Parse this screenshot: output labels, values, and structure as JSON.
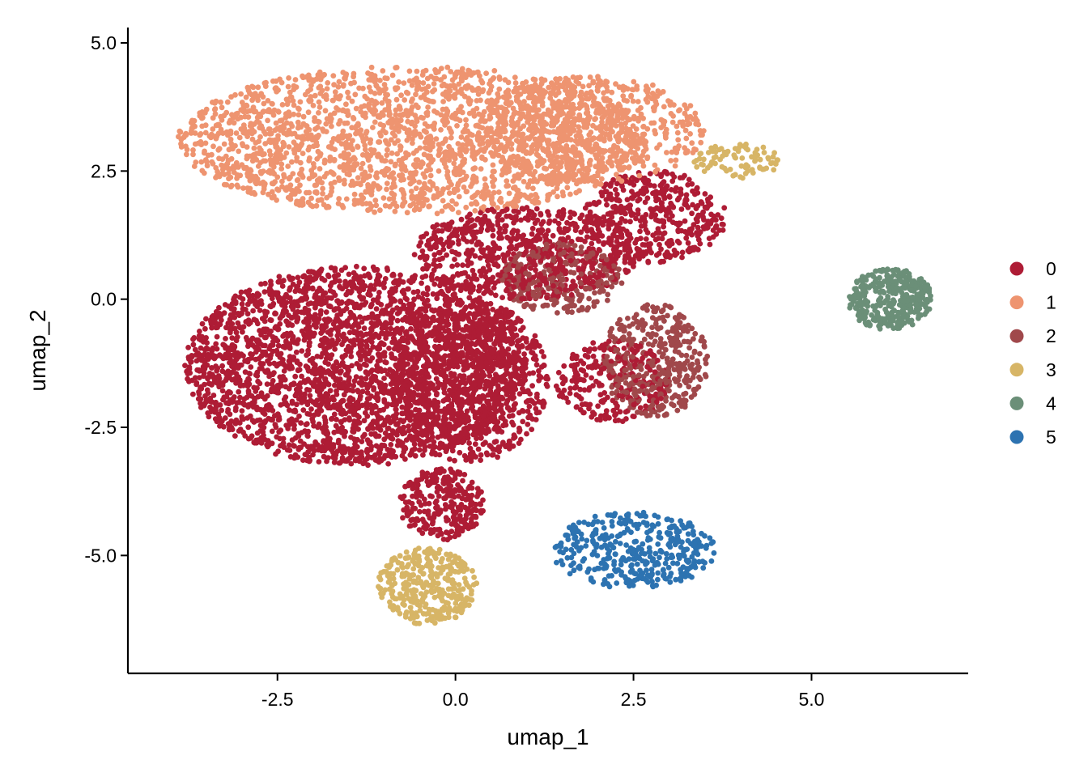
{
  "chart_data": {
    "type": "scatter",
    "title": "",
    "xlabel": "umap_1",
    "ylabel": "umap_2",
    "xlim": [
      -4.6,
      7.2
    ],
    "ylim": [
      -7.3,
      5.3
    ],
    "x_ticks": [
      -2.5,
      0.0,
      2.5,
      5.0
    ],
    "y_ticks": [
      -5.0,
      -2.5,
      0.0,
      2.5,
      5.0
    ],
    "x_tick_labels": [
      "-2.5",
      "0.0",
      "2.5",
      "5.0"
    ],
    "y_tick_labels": [
      "-5.0",
      "-2.5",
      "0.0",
      "2.5",
      "5.0"
    ],
    "grid": false,
    "legend_position": "right",
    "legend_title": "",
    "clusters": [
      {
        "name": "0",
        "color": "#AE1C35",
        "n_points": 5200
      },
      {
        "name": "1",
        "color": "#EE9470",
        "n_points": 2700
      },
      {
        "name": "2",
        "color": "#A0484B",
        "n_points": 650
      },
      {
        "name": "3",
        "color": "#D7B566",
        "n_points": 420
      },
      {
        "name": "4",
        "color": "#6B8F78",
        "n_points": 330
      },
      {
        "name": "5",
        "color": "#2D73B1",
        "n_points": 380
      }
    ],
    "regions": [
      {
        "cluster": "1",
        "type": "ellipse",
        "cx": -0.6,
        "cy": 3.1,
        "rx": 3.3,
        "ry": 1.45,
        "share": 0.78
      },
      {
        "cluster": "1",
        "type": "ellipse",
        "cx": 1.9,
        "cy": 3.3,
        "rx": 1.6,
        "ry": 1.05,
        "share": 0.22
      },
      {
        "cluster": "0",
        "type": "ellipse",
        "cx": -1.4,
        "cy": -1.3,
        "rx": 2.4,
        "ry": 1.95,
        "share": 0.52
      },
      {
        "cluster": "0",
        "type": "ellipse",
        "cx": 0.2,
        "cy": -1.6,
        "rx": 1.1,
        "ry": 1.6,
        "share": 0.16
      },
      {
        "cluster": "0",
        "type": "ellipse",
        "cx": 1.0,
        "cy": 0.9,
        "rx": 1.6,
        "ry": 0.9,
        "share": 0.14
      },
      {
        "cluster": "0",
        "type": "ellipse",
        "cx": 2.8,
        "cy": 1.6,
        "rx": 1.0,
        "ry": 0.9,
        "share": 0.08
      },
      {
        "cluster": "0",
        "type": "ellipse",
        "cx": -0.2,
        "cy": -4.0,
        "rx": 0.6,
        "ry": 0.7,
        "share": 0.05
      },
      {
        "cluster": "0",
        "type": "ellipse",
        "cx": 2.2,
        "cy": -1.6,
        "rx": 0.8,
        "ry": 0.8,
        "share": 0.05
      },
      {
        "cluster": "2",
        "type": "ellipse",
        "cx": 1.5,
        "cy": 0.4,
        "rx": 0.85,
        "ry": 0.7,
        "share": 0.4
      },
      {
        "cluster": "2",
        "type": "ellipse",
        "cx": 2.8,
        "cy": -1.2,
        "rx": 0.75,
        "ry": 1.1,
        "share": 0.6
      },
      {
        "cluster": "3",
        "type": "ellipse",
        "cx": -0.4,
        "cy": -5.6,
        "rx": 0.7,
        "ry": 0.75,
        "share": 0.8
      },
      {
        "cluster": "3",
        "type": "ellipse",
        "cx": 3.95,
        "cy": 2.7,
        "rx": 0.6,
        "ry": 0.35,
        "share": 0.2
      },
      {
        "cluster": "4",
        "type": "ellipse",
        "cx": 6.1,
        "cy": 0.0,
        "rx": 0.6,
        "ry": 0.6,
        "share": 1.0
      },
      {
        "cluster": "5",
        "type": "ellipse",
        "cx": 2.5,
        "cy": -4.9,
        "rx": 1.15,
        "ry": 0.75,
        "share": 1.0
      }
    ]
  }
}
